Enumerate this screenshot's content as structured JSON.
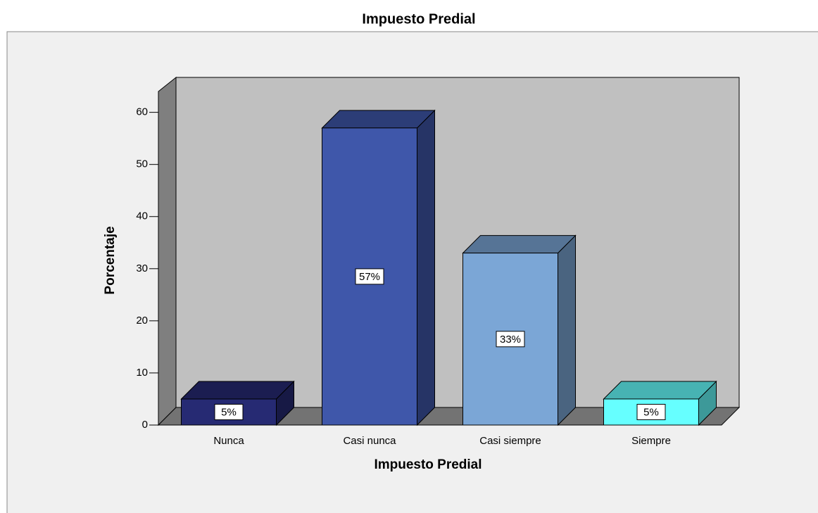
{
  "chart_data": {
    "type": "bar3d",
    "title": "Impuesto Predial",
    "x_label": "Impuesto Predial",
    "y_label": "Porcentaje",
    "categories": [
      "Nunca",
      "Casi nunca",
      "Casi siempre",
      "Siempre"
    ],
    "values": [
      5,
      57,
      33,
      5
    ],
    "value_labels": [
      "5%",
      "57%",
      "33%",
      "5%"
    ],
    "colors": [
      "#262a73",
      "#3f57aa",
      "#7ba6d6",
      "#66ffff"
    ],
    "ylim": [
      0,
      64
    ],
    "yticks": [
      0,
      10,
      20,
      30,
      40,
      50,
      60
    ]
  }
}
